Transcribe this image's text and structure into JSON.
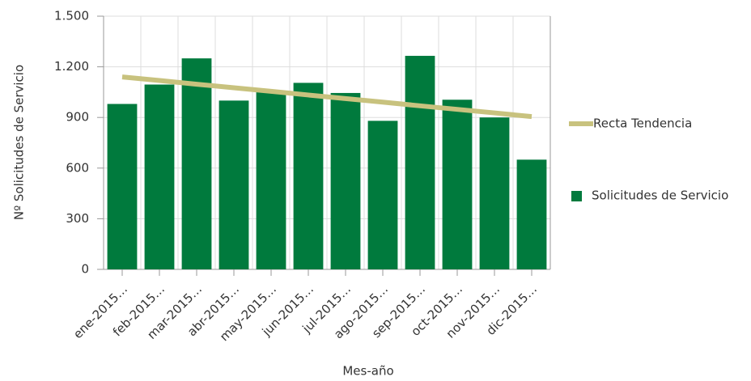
{
  "chart_data": {
    "type": "bar",
    "x_label": "Mes-año",
    "y_label": "Nº Solicitudes de Servicio",
    "categories": [
      "ene-2015…",
      "feb-2015…",
      "mar-2015…",
      "abr-2015…",
      "may-2015…",
      "jun-2015…",
      "jul-2015…",
      "ago-2015…",
      "sep-2015…",
      "oct-2015…",
      "nov-2015…",
      "dic-2015…"
    ],
    "series": [
      {
        "name": "Recta Tendencia",
        "type": "line",
        "color": "#c8c27e",
        "values": [
          1140,
          1119,
          1097,
          1076,
          1055,
          1033,
          1012,
          991,
          969,
          948,
          927,
          905
        ]
      },
      {
        "name": "Solicitudes de Servicio",
        "type": "bar",
        "color": "#007a3d",
        "values": [
          980,
          1095,
          1250,
          1000,
          1055,
          1105,
          1045,
          880,
          1265,
          1005,
          900,
          650
        ]
      }
    ],
    "ylim": [
      0,
      1500
    ],
    "yticks": [
      0,
      300,
      600,
      900,
      {
        "value": 1200,
        "label": "1.200"
      },
      {
        "value": 1500,
        "label": "1.500"
      }
    ],
    "grid": true
  }
}
